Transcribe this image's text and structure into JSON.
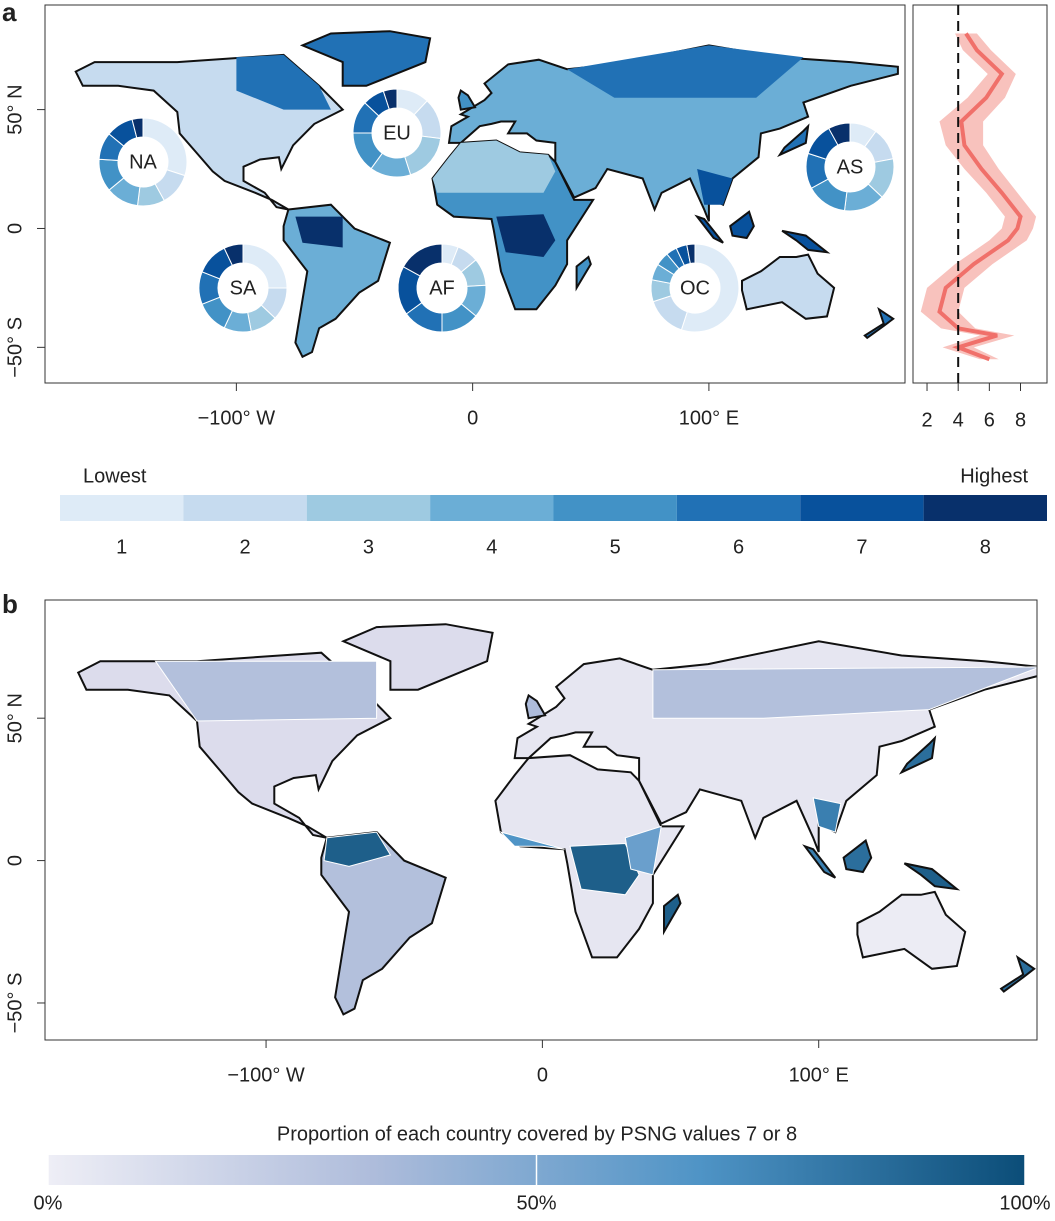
{
  "panel_a": {
    "label": "a",
    "xlim": [
      -181,
      183
    ],
    "ylim": [
      -65,
      94
    ],
    "xticks": [
      {
        "value": -100,
        "label": "−100° W"
      },
      0,
      {
        "value": 100,
        "label": "100° E"
      }
    ],
    "yticks": [
      {
        "value": 50,
        "label": "50° N"
      },
      0,
      {
        "value": -50,
        "label": "−50° S"
      }
    ],
    "donuts": [
      {
        "label": "NA",
        "values": [
          30,
          12,
          10,
          12,
          12,
          10,
          10,
          4
        ]
      },
      {
        "label": "EU",
        "values": [
          12,
          15,
          18,
          15,
          15,
          12,
          8,
          5
        ]
      },
      {
        "label": "AS",
        "values": [
          10,
          12,
          15,
          15,
          15,
          13,
          12,
          8
        ]
      },
      {
        "label": "SA",
        "values": [
          25,
          12,
          10,
          10,
          12,
          12,
          12,
          7
        ]
      },
      {
        "label": "AF",
        "values": [
          6,
          8,
          10,
          12,
          14,
          15,
          18,
          17
        ]
      },
      {
        "label": "OC",
        "values": [
          55,
          15,
          8,
          6,
          5,
          4,
          4,
          3
        ]
      }
    ],
    "profile": {
      "type": "line",
      "xlim": [
        1.1,
        9.7
      ],
      "xticks": [
        2,
        4,
        6,
        8
      ],
      "reference": 4,
      "color": "#f0706a",
      "band_color": "#f8c2bd",
      "lat": [
        82,
        75,
        65,
        55,
        45,
        35,
        25,
        15,
        5,
        0,
        -5,
        -15,
        -25,
        -35,
        -42,
        -45,
        -50,
        -55
      ],
      "values": [
        4.5,
        5.2,
        6.8,
        5.8,
        4.2,
        4.4,
        5.5,
        6.8,
        8.0,
        7.8,
        7.2,
        5.0,
        3.2,
        2.8,
        4.0,
        6.5,
        4.0,
        6.0
      ],
      "lower": [
        3.8,
        4.3,
        5.9,
        4.6,
        2.8,
        3.2,
        4.4,
        5.8,
        7.0,
        6.8,
        6.0,
        3.8,
        2.0,
        1.6,
        2.9,
        5.4,
        3.0,
        5.4
      ],
      "upper": [
        5.2,
        6.1,
        7.7,
        7.0,
        5.6,
        5.6,
        6.6,
        7.8,
        9.0,
        8.8,
        8.4,
        6.2,
        4.4,
        4.0,
        5.1,
        7.6,
        5.0,
        6.6
      ]
    }
  },
  "legend_a": {
    "low": "Lowest",
    "high": "Highest",
    "classes": [
      1,
      2,
      3,
      4,
      5,
      6,
      7,
      8
    ],
    "colors": [
      "#deebf7",
      "#c6dbef",
      "#9ecae1",
      "#6baed6",
      "#4292c6",
      "#2171b5",
      "#08519c",
      "#08306b"
    ]
  },
  "panel_b": {
    "label": "b",
    "xlim": [
      -180,
      179
    ],
    "ylim": [
      -63,
      91.5
    ],
    "xticks": [
      {
        "value": -100,
        "label": "−100° W"
      },
      0,
      {
        "value": 100,
        "label": "100° E"
      }
    ],
    "yticks": [
      {
        "value": 50,
        "label": "50° N"
      },
      0,
      {
        "value": -50,
        "label": "−50° S"
      }
    ]
  },
  "legend_b": {
    "title": "Proportion of each country covered by PSNG values 7 or 8",
    "lim": [
      0,
      100
    ],
    "colors": [
      "#eeeef6",
      "#aebcdb",
      "#4f94c6",
      "#0b4d78"
    ],
    "ticks": [
      {
        "value": 0,
        "label": "0%"
      },
      {
        "value": 50,
        "label": "50%"
      },
      {
        "value": 100,
        "label": "100%"
      }
    ]
  }
}
